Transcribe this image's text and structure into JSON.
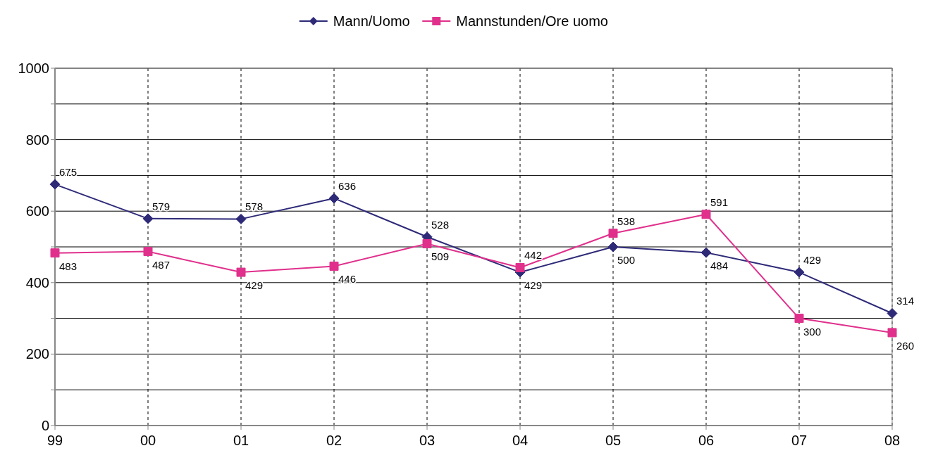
{
  "chart_data": {
    "type": "line",
    "categories": [
      "99",
      "00",
      "01",
      "02",
      "03",
      "04",
      "05",
      "06",
      "07",
      "08"
    ],
    "series": [
      {
        "name": "Mann/Uomo",
        "color": "#2e2a78",
        "marker": "diamond",
        "values": [
          675,
          579,
          578,
          636,
          528,
          429,
          500,
          484,
          429,
          314
        ]
      },
      {
        "name": "Mannstunden/Ore uomo",
        "color": "#e0308c",
        "marker": "square",
        "values": [
          483,
          487,
          429,
          446,
          509,
          442,
          538,
          591,
          300,
          260
        ]
      }
    ],
    "ylim": [
      0,
      1000
    ],
    "yticks": [
      0,
      {
        "value": 100,
        "label": null
      },
      200,
      {
        "value": 300,
        "label": null
      },
      400,
      {
        "value": 500,
        "label": null
      },
      600,
      {
        "value": 700,
        "label": null
      },
      800,
      {
        "value": 900,
        "label": null
      },
      1000
    ],
    "grid": true,
    "legend": "top",
    "data_labels": true
  }
}
